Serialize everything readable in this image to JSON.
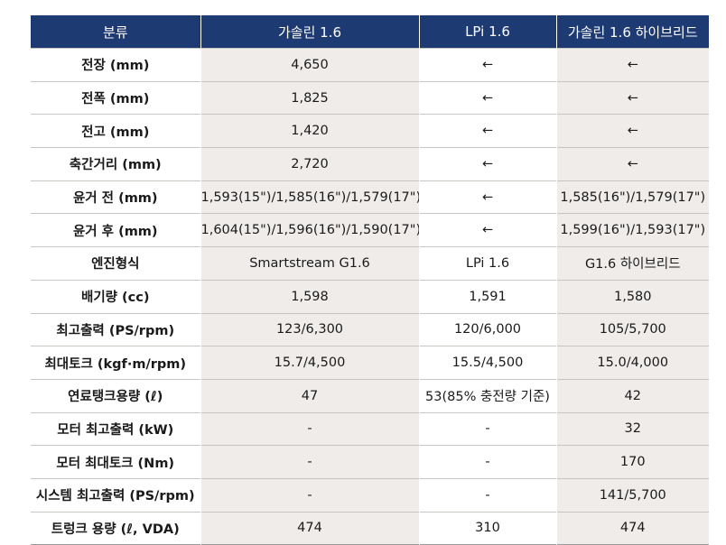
{
  "headers": [
    "분류",
    "가솔린 1.6",
    "LPi 1.6",
    "가솔린 1.6 하이브리드"
  ],
  "rows": [
    {
      "label": "전장 (mm)",
      "gas": "4,650",
      "lpi": "←",
      "hybrid": "←"
    },
    {
      "label": "전폭 (mm)",
      "gas": "1,825",
      "lpi": "←",
      "hybrid": "←"
    },
    {
      "label": "전고 (mm)",
      "gas": "1,420",
      "lpi": "←",
      "hybrid": "←"
    },
    {
      "label": "축간거리 (mm)",
      "gas": "2,720",
      "lpi": "←",
      "hybrid": "←"
    },
    {
      "label": "윤거 전 (mm)",
      "gas": "1,593(15\")/1,585(16\")/1,579(17\")",
      "lpi": "←",
      "hybrid": "1,585(16\")/1,579(17\")"
    },
    {
      "label": "윤거 후 (mm)",
      "gas": "1,604(15\")/1,596(16\")/1,590(17\")",
      "lpi": "←",
      "hybrid": "1,599(16\")/1,593(17\")"
    },
    {
      "label": "엔진형식",
      "gas": "Smartstream G1.6",
      "lpi": "LPi 1.6",
      "hybrid": "G1.6 하이브리드"
    },
    {
      "label": "배기량 (cc)",
      "gas": "1,598",
      "lpi": "1,591",
      "hybrid": "1,580"
    },
    {
      "label": "최고출력 (PS/rpm)",
      "gas": "123/6,300",
      "lpi": "120/6,000",
      "hybrid": "105/5,700"
    },
    {
      "label": "최대토크 (kgf·m/rpm)",
      "gas": "15.7/4,500",
      "lpi": "15.5/4,500",
      "hybrid": "15.0/4,000"
    },
    {
      "label": "연료탱크용량 (ℓ)",
      "gas": "47",
      "lpi": "53(85% 충전량 기준)",
      "hybrid": "42"
    },
    {
      "label": "모터 최고출력 (kW)",
      "gas": "-",
      "lpi": "-",
      "hybrid": "32"
    },
    {
      "label": "모터 최대토크 (Nm)",
      "gas": "-",
      "lpi": "-",
      "hybrid": "170"
    },
    {
      "label": "시스템 최고출력 (PS/rpm)",
      "gas": "-",
      "lpi": "-",
      "hybrid": "141/5,700"
    },
    {
      "label": "트렁크 용량 (ℓ, VDA)",
      "gas": "474",
      "lpi": "310",
      "hybrid": "474"
    }
  ],
  "colors": {
    "header_bg": "#1d3a72",
    "shaded_cell": "#efecea",
    "rule": "#c8c4c0"
  }
}
